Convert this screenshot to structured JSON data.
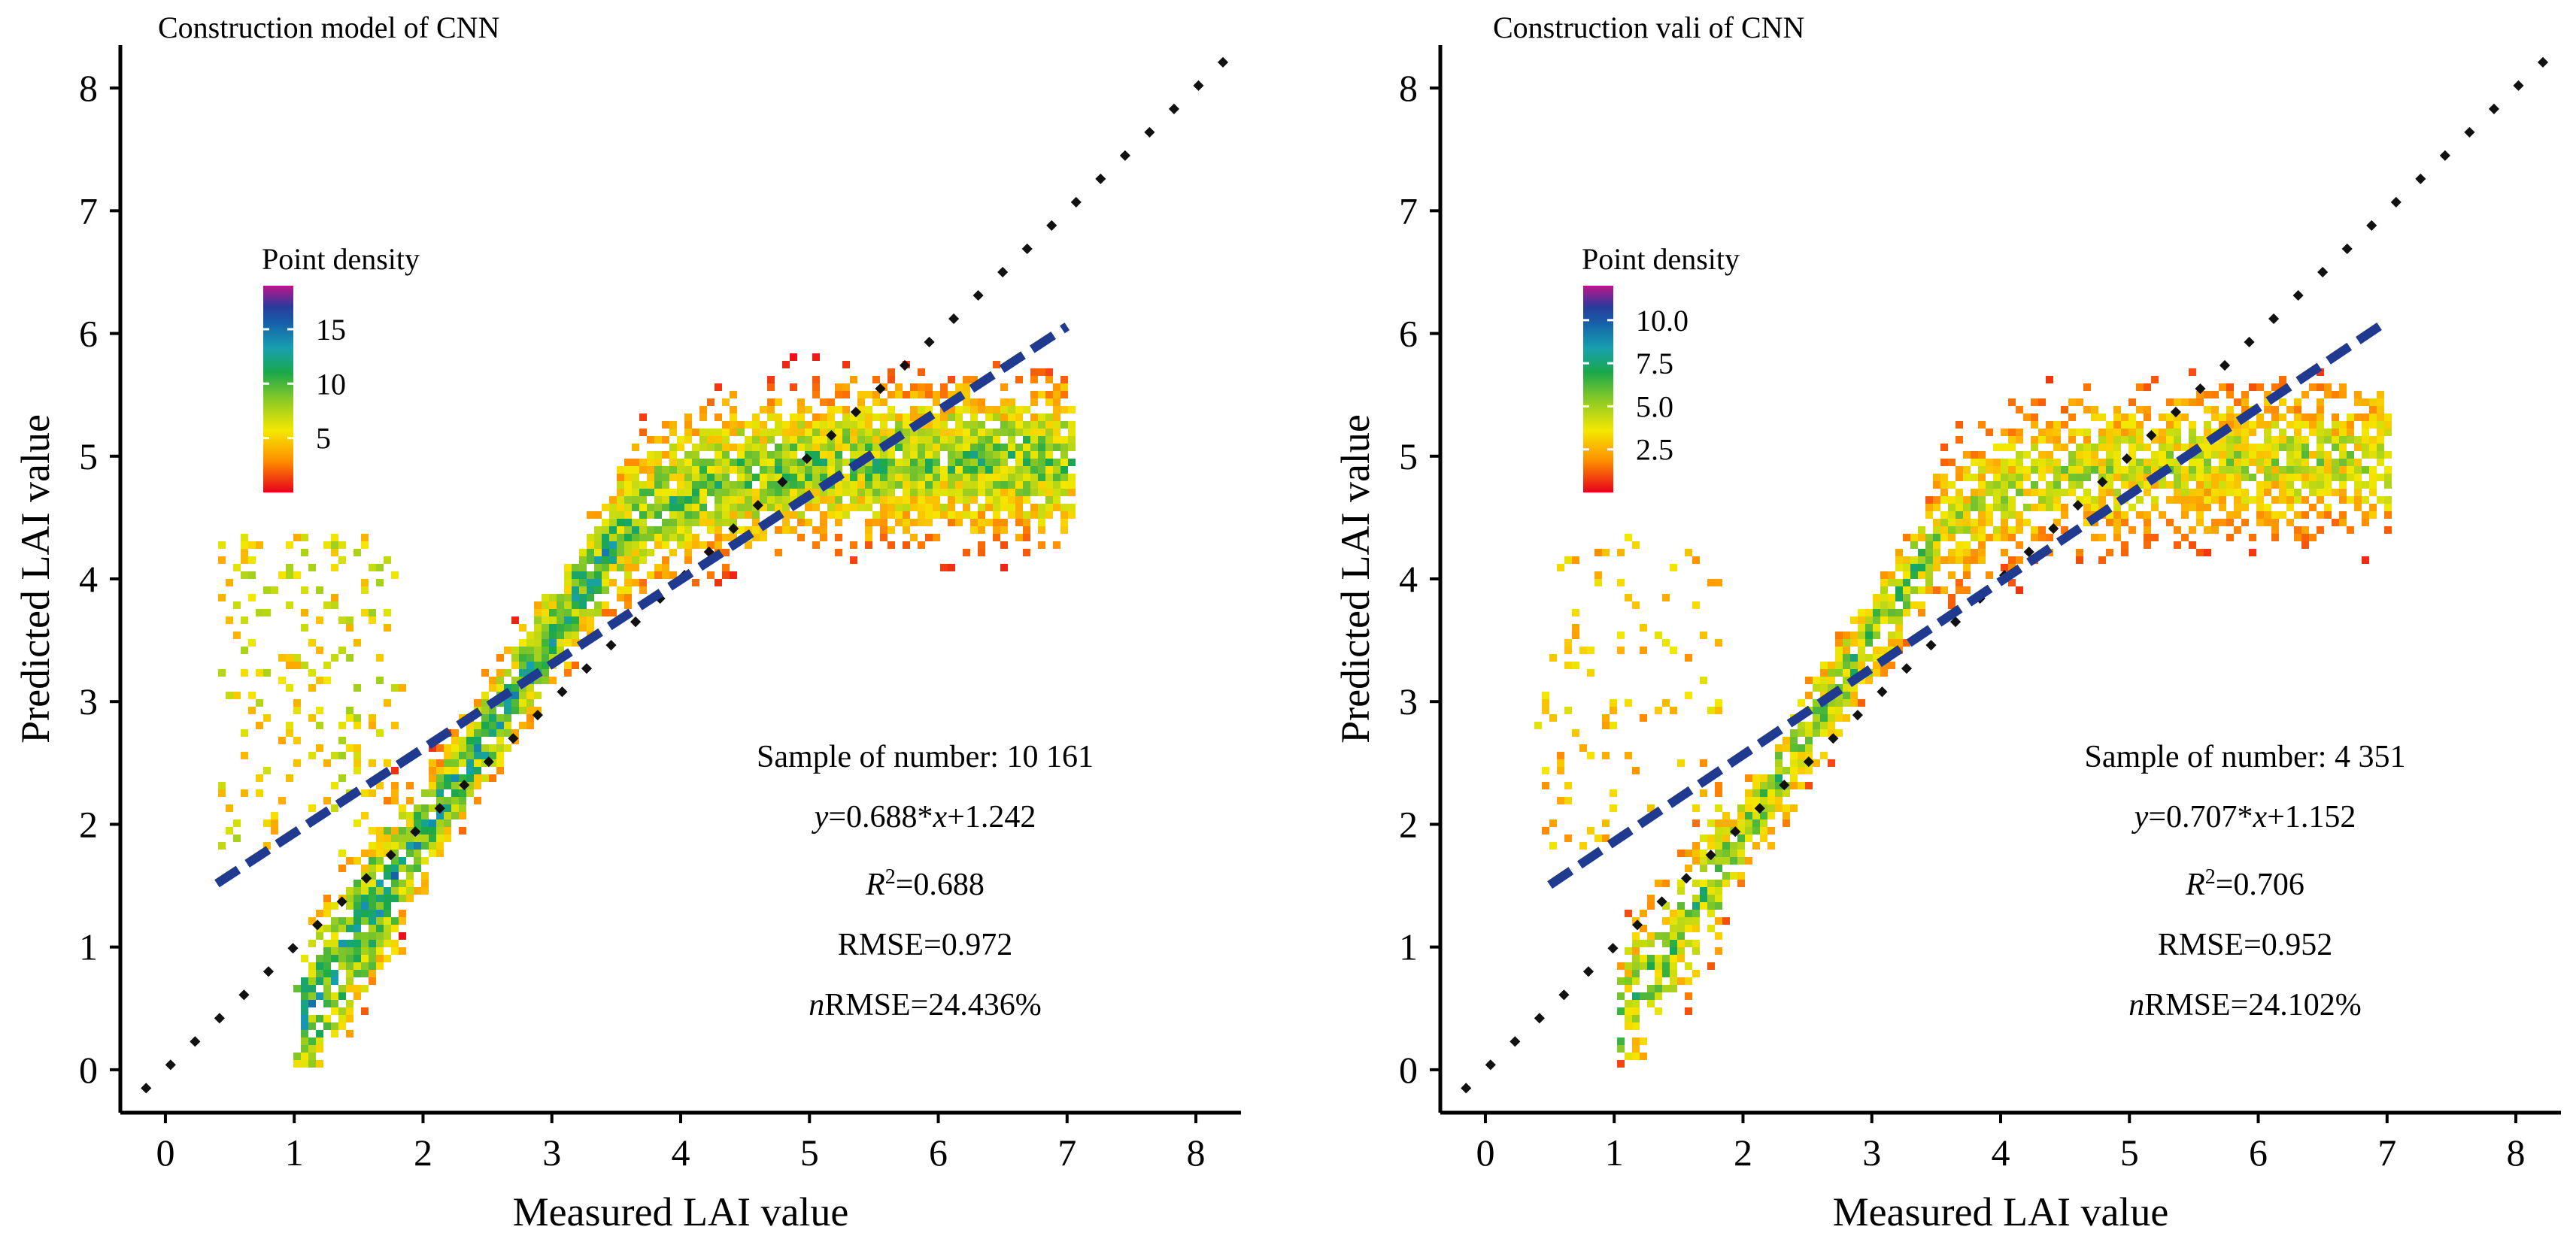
{
  "chart_data": [
    {
      "type": "scatter",
      "title": "Construction model of CNN",
      "xlabel": "Measured LAI value",
      "ylabel": "Predicted LAI value",
      "xlim": [
        -0.35,
        8.35
      ],
      "ylim": [
        -0.35,
        8.35
      ],
      "xticks": [
        0,
        1,
        2,
        3,
        4,
        5,
        6,
        7,
        8
      ],
      "yticks": [
        0,
        1,
        2,
        3,
        4,
        5,
        6,
        7,
        8
      ],
      "legend": {
        "title": "Point density",
        "colorbar_range": [
          0,
          19
        ],
        "ticks": [
          "15",
          "10",
          "5"
        ],
        "tick_values": [
          15,
          10,
          5
        ]
      },
      "fit_line": {
        "slope": 0.688,
        "intercept": 1.242,
        "x_range": [
          0.4,
          7.0
        ]
      },
      "identity_line": {
        "x_range": [
          -0.15,
          8.3
        ]
      },
      "stats": {
        "sample": "Sample of number: 10 161",
        "eq_prefix": "y",
        "eq_mid": "=0.688*",
        "eq_x": "x",
        "eq_suffix": "+1.242",
        "r2_prefix": "R",
        "r2_sup": "2",
        "r2_value": "=0.688",
        "rmse": "RMSE=0.972",
        "nrmse_prefix": "n",
        "nrmse_value": "RMSE=24.436%"
      },
      "point_generation": {
        "seed": 11,
        "count": 3800,
        "max_density": 19,
        "core_density": 16
      }
    },
    {
      "type": "scatter",
      "title": "Construction vali of CNN",
      "xlabel": "Measured LAI value",
      "ylabel": "Predicted LAI value",
      "xlim": [
        -0.35,
        8.35
      ],
      "ylim": [
        -0.35,
        8.35
      ],
      "xticks": [
        0,
        1,
        2,
        3,
        4,
        5,
        6,
        7,
        8
      ],
      "yticks": [
        0,
        1,
        2,
        3,
        4,
        5,
        6,
        7,
        8
      ],
      "legend": {
        "title": "Point density",
        "colorbar_range": [
          0,
          12
        ],
        "ticks": [
          "10.0",
          "7.5",
          "5.0",
          "2.5"
        ],
        "tick_values": [
          10,
          7.5,
          5,
          2.5
        ]
      },
      "fit_line": {
        "slope": 0.707,
        "intercept": 1.152,
        "x_range": [
          0.5,
          7.0
        ]
      },
      "identity_line": {
        "x_range": [
          -0.15,
          8.3
        ]
      },
      "stats": {
        "sample": "Sample of number: 4 351",
        "eq_prefix": "y",
        "eq_mid": "=0.707*",
        "eq_x": "x",
        "eq_suffix": "+1.152",
        "r2_prefix": "R",
        "r2_sup": "2",
        "r2_value": "=0.706",
        "rmse": "RMSE=0.952",
        "nrmse_prefix": "n",
        "nrmse_value": "RMSE=24.102%"
      },
      "point_generation": {
        "seed": 29,
        "count": 2200,
        "max_density": 12,
        "core_density": 8
      }
    }
  ]
}
